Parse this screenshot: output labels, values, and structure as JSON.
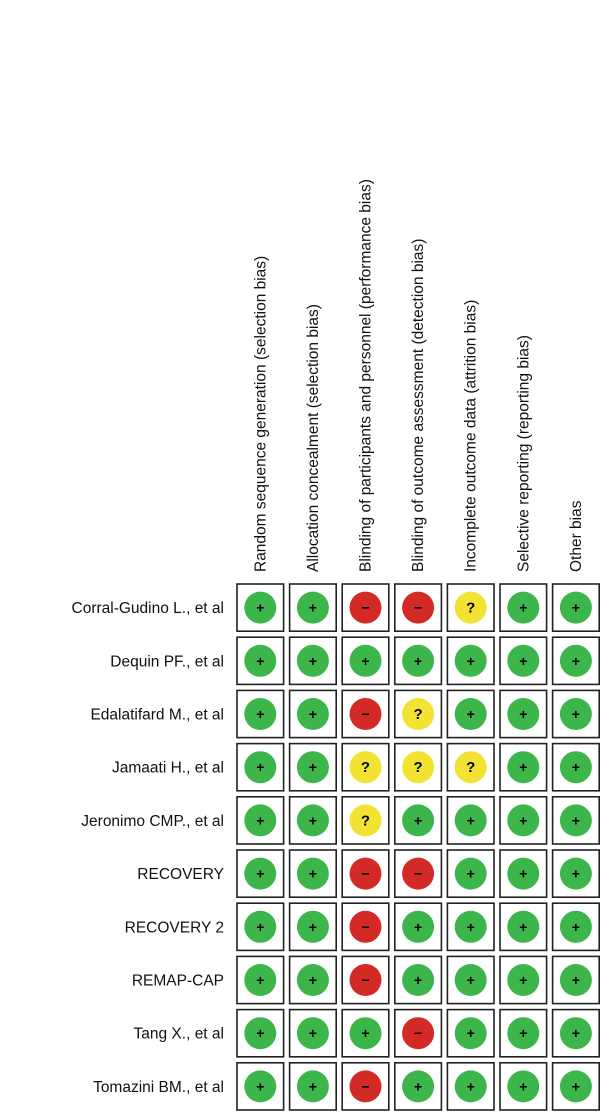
{
  "colors": {
    "low": "#3cb54a",
    "high": "#d42a26",
    "unclear": "#f2e232",
    "grid": "#222222",
    "background": "#ffffff"
  },
  "symbols": {
    "low": "+",
    "high": "−",
    "unclear": "?"
  },
  "chart_data": {
    "type": "table",
    "title": "",
    "legend": "none",
    "columns": [
      "Random sequence generation (selection bias)",
      "Allocation concealment (selection bias)",
      "Blinding of participants and personnel (performance bias)",
      "Blinding of outcome assessment (detection bias)",
      "Incomplete outcome data (attrition bias)",
      "Selective reporting (reporting bias)",
      "Other bias"
    ],
    "rows": [
      {
        "study": "Corral-Gudino L., et al",
        "judgements": [
          "low",
          "low",
          "high",
          "high",
          "unclear",
          "low",
          "low"
        ]
      },
      {
        "study": "Dequin PF., et al",
        "judgements": [
          "low",
          "low",
          "low",
          "low",
          "low",
          "low",
          "low"
        ]
      },
      {
        "study": "Edalatifard M., et al",
        "judgements": [
          "low",
          "low",
          "high",
          "unclear",
          "low",
          "low",
          "low"
        ]
      },
      {
        "study": "Jamaati H., et al",
        "judgements": [
          "low",
          "low",
          "unclear",
          "unclear",
          "unclear",
          "low",
          "low"
        ]
      },
      {
        "study": "Jeronimo CMP., et al",
        "judgements": [
          "low",
          "low",
          "unclear",
          "low",
          "low",
          "low",
          "low"
        ]
      },
      {
        "study": "RECOVERY",
        "judgements": [
          "low",
          "low",
          "high",
          "high",
          "low",
          "low",
          "low"
        ]
      },
      {
        "study": "RECOVERY 2",
        "judgements": [
          "low",
          "low",
          "high",
          "low",
          "low",
          "low",
          "low"
        ]
      },
      {
        "study": "REMAP-CAP",
        "judgements": [
          "low",
          "low",
          "high",
          "low",
          "low",
          "low",
          "low"
        ]
      },
      {
        "study": "Tang X., et al",
        "judgements": [
          "low",
          "low",
          "low",
          "high",
          "low",
          "low",
          "low"
        ]
      },
      {
        "study": "Tomazini BM., et al",
        "judgements": [
          "low",
          "low",
          "high",
          "low",
          "low",
          "low",
          "low"
        ]
      }
    ]
  }
}
